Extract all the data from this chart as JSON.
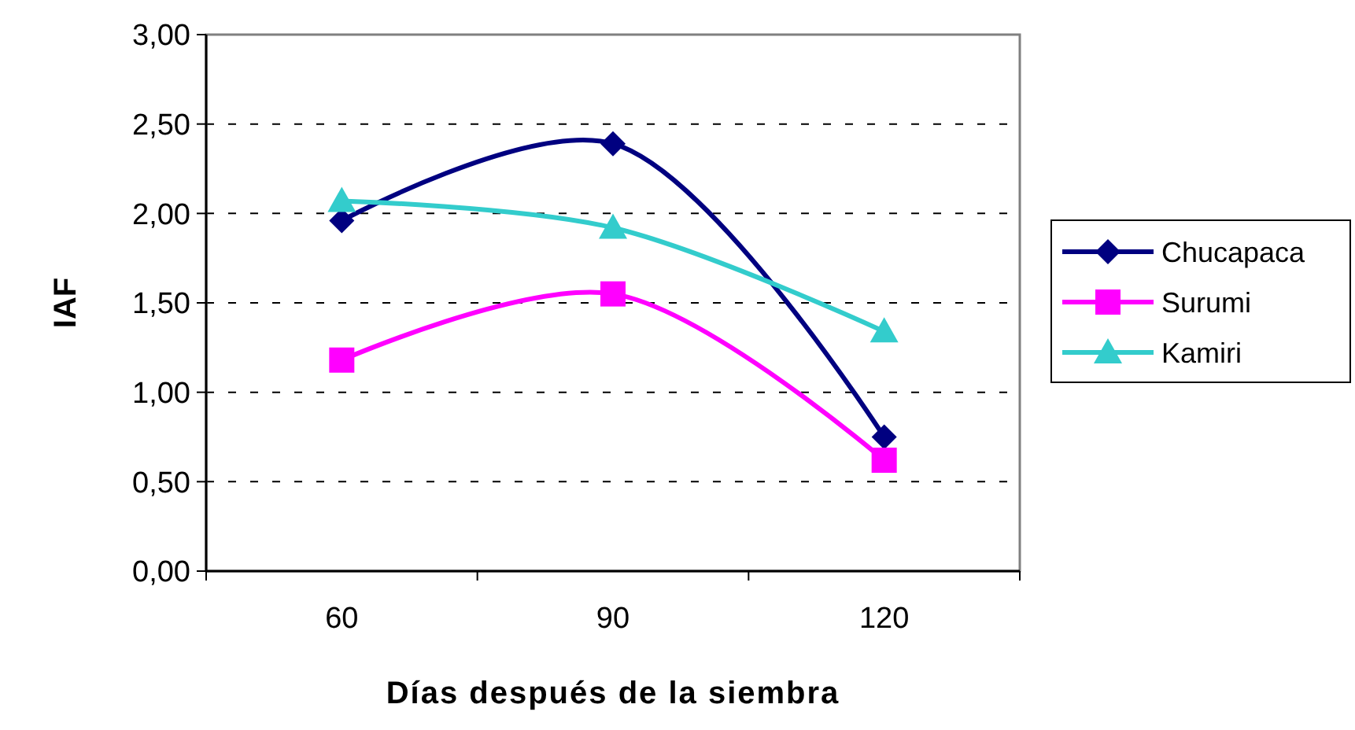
{
  "chart_data": {
    "type": "line",
    "xlabel": "Días después de la siembra",
    "ylabel": "IAF",
    "categories": [
      "60",
      "90",
      "120"
    ],
    "series": [
      {
        "name": "Chucapaca",
        "color": "#000080",
        "marker": "diamond",
        "values": [
          1.96,
          2.39,
          0.75
        ]
      },
      {
        "name": "Surumi",
        "color": "#ff00ff",
        "marker": "square",
        "values": [
          1.18,
          1.55,
          0.62
        ]
      },
      {
        "name": "Kamiri",
        "color": "#33cccc",
        "marker": "triangle",
        "values": [
          2.07,
          1.92,
          1.34
        ]
      }
    ],
    "ylim": [
      0,
      3
    ],
    "yticks": [
      {
        "value": 0,
        "label": "0,00"
      },
      {
        "value": 0.5,
        "label": "0,50"
      },
      {
        "value": 1,
        "label": "1,00"
      },
      {
        "value": 1.5,
        "label": "1,50"
      },
      {
        "value": 2,
        "label": "2,00"
      },
      {
        "value": 2.5,
        "label": "2,50"
      },
      {
        "value": 3,
        "label": "3,00"
      }
    ],
    "grid": "y",
    "legend": "right",
    "line_style": "solid"
  }
}
